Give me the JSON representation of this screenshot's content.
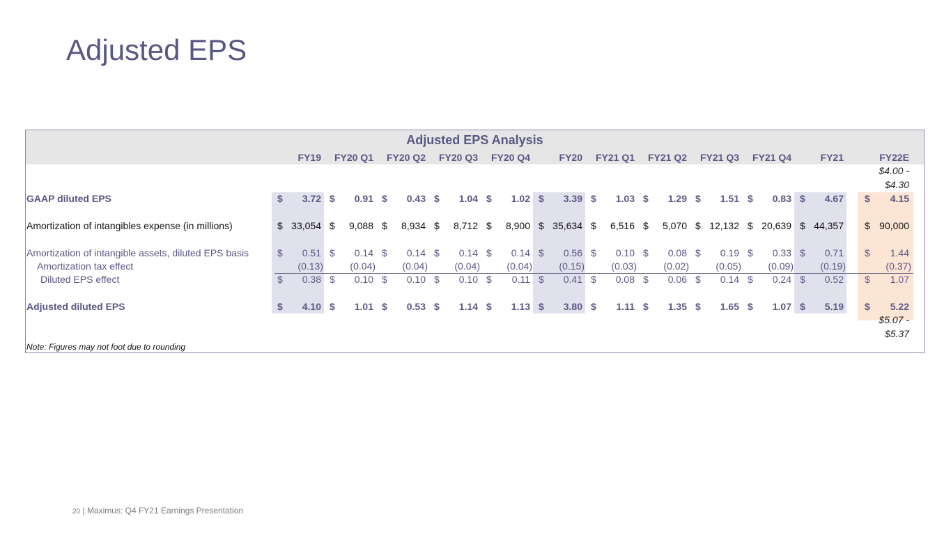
{
  "title": "Adjusted EPS",
  "table": {
    "title": "Adjusted EPS Analysis",
    "columns": [
      "FY19",
      "FY20 Q1",
      "FY20 Q2",
      "FY20 Q3",
      "FY20 Q4",
      "FY20",
      "FY21 Q1",
      "FY21 Q2",
      "FY21 Q3",
      "FY21 Q4",
      "FY21",
      "FY22E"
    ],
    "guidance_top": [
      "$4.00 -",
      "$4.30"
    ],
    "guidance_bottom": [
      "$5.07 -",
      "$5.37"
    ],
    "rows": [
      {
        "label": "GAAP diluted EPS",
        "style": "blue-bold",
        "values": [
          "3.72",
          "0.91",
          "0.43",
          "1.04",
          "1.02",
          "3.39",
          "1.03",
          "1.29",
          "1.51",
          "0.83",
          "4.67",
          "4.15"
        ],
        "dollar": true
      },
      {
        "label": "Amortization of intangibles expense (in millions)",
        "style": "black",
        "values": [
          "33,054",
          "9,088",
          "8,934",
          "8,712",
          "8,900",
          "35,634",
          "6,516",
          "5,070",
          "12,132",
          "20,639",
          "44,357",
          "90,000"
        ],
        "dollar": true
      },
      {
        "label": "Amortization of intangible assets, diluted EPS basis",
        "style": "blue",
        "values": [
          "0.51",
          "0.14",
          "0.14",
          "0.14",
          "0.14",
          "0.56",
          "0.10",
          "0.08",
          "0.19",
          "0.33",
          "0.71",
          "1.44"
        ],
        "dollar": true
      },
      {
        "label": "Amortization tax effect",
        "style": "blue",
        "values": [
          "(0.13)",
          "(0.04)",
          "(0.04)",
          "(0.04)",
          "(0.04)",
          "(0.15)",
          "(0.03)",
          "(0.02)",
          "(0.05)",
          "(0.09)",
          "(0.19)",
          "(0.37)"
        ],
        "dollar": false
      },
      {
        "label": "Diluted EPS effect",
        "style": "blue",
        "values": [
          "0.38",
          "0.10",
          "0.10",
          "0.10",
          "0.11",
          "0.41",
          "0.08",
          "0.06",
          "0.14",
          "0.24",
          "0.52",
          "1.07"
        ],
        "dollar": true
      },
      {
        "label": "Adjusted diluted EPS",
        "style": "blue-bold",
        "values": [
          "4.10",
          "1.01",
          "0.53",
          "1.14",
          "1.13",
          "3.80",
          "1.11",
          "1.35",
          "1.65",
          "1.07",
          "5.19",
          "5.22"
        ],
        "dollar": true
      }
    ],
    "note": "Note: Figures may not foot due to rounding"
  },
  "footer": {
    "page_number": "20",
    "separator": "|",
    "text": "Maximus: Q4 FY21 Earnings Presentation"
  }
}
